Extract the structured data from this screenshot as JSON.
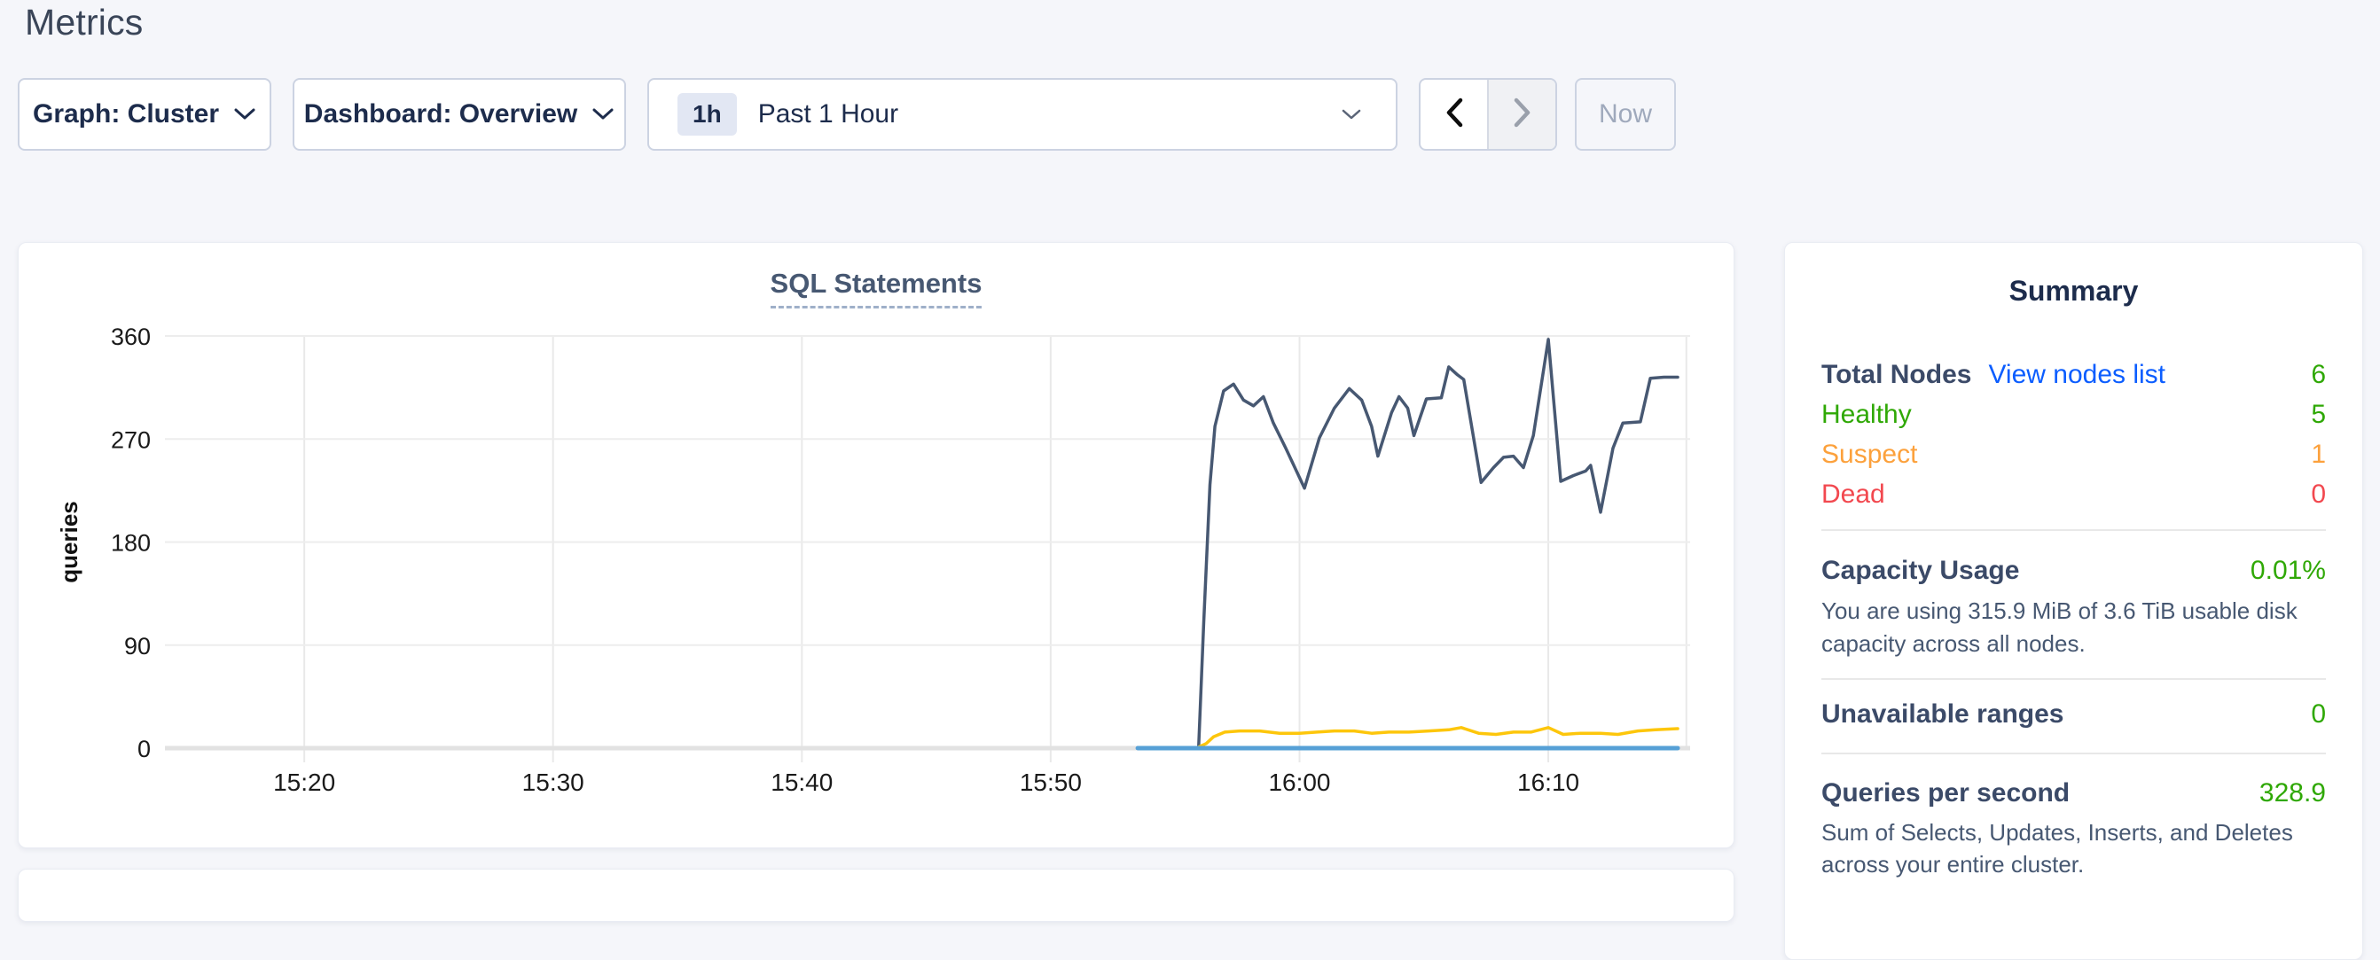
{
  "page": {
    "title": "Metrics",
    "background": "#f5f6fa"
  },
  "toolbar": {
    "graph": {
      "label": "Graph: Cluster"
    },
    "dashboard": {
      "label": "Dashboard: Overview"
    },
    "time": {
      "badge": "1h",
      "label": "Past 1 Hour"
    },
    "now": {
      "label": "Now"
    }
  },
  "chart_data": {
    "type": "line",
    "title": "SQL Statements",
    "ylabel": "queries",
    "ylim": [
      0,
      360
    ],
    "yticks": [
      0,
      90,
      180,
      270,
      360
    ],
    "x_unit": "minutes after 15:00",
    "xlim_minutes": [
      14.4,
      75.7
    ],
    "xticks": [
      {
        "minute": 20,
        "label": "15:20"
      },
      {
        "minute": 30,
        "label": "15:30"
      },
      {
        "minute": 40,
        "label": "15:40"
      },
      {
        "minute": 50,
        "label": "15:50"
      },
      {
        "minute": 60,
        "label": "16:00"
      },
      {
        "minute": 70,
        "label": "16:10"
      }
    ],
    "edge_gridline_minute": 75.55,
    "grid": true,
    "legend": "none",
    "series": [
      {
        "name": "navy-series",
        "color": "#475872",
        "stroke_width": 3.5,
        "points": [
          [
            55.95,
            2
          ],
          [
            56.15,
            110
          ],
          [
            56.4,
            230
          ],
          [
            56.6,
            281
          ],
          [
            56.95,
            312
          ],
          [
            57.35,
            318
          ],
          [
            57.75,
            304
          ],
          [
            58.15,
            299
          ],
          [
            58.55,
            307
          ],
          [
            58.95,
            284
          ],
          [
            59.45,
            262
          ],
          [
            60.2,
            227
          ],
          [
            60.8,
            271
          ],
          [
            61.4,
            297
          ],
          [
            62.0,
            314
          ],
          [
            62.5,
            304
          ],
          [
            62.9,
            281
          ],
          [
            63.15,
            255
          ],
          [
            63.7,
            293
          ],
          [
            64.0,
            307
          ],
          [
            64.35,
            297
          ],
          [
            64.6,
            273
          ],
          [
            65.1,
            305
          ],
          [
            65.7,
            306
          ],
          [
            66.0,
            333
          ],
          [
            66.35,
            326
          ],
          [
            66.6,
            322
          ],
          [
            67.3,
            232
          ],
          [
            67.8,
            245
          ],
          [
            68.2,
            254
          ],
          [
            68.6,
            255
          ],
          [
            69.0,
            245
          ],
          [
            69.4,
            273
          ],
          [
            70.0,
            357
          ],
          [
            70.5,
            233
          ],
          [
            71.0,
            238
          ],
          [
            71.5,
            242
          ],
          [
            71.7,
            247
          ],
          [
            72.1,
            206
          ],
          [
            72.6,
            262
          ],
          [
            73.0,
            284
          ],
          [
            73.7,
            285
          ],
          [
            74.1,
            323
          ],
          [
            74.65,
            324
          ],
          [
            75.2,
            324
          ]
        ]
      },
      {
        "name": "yellow-series",
        "color": "#fdc60b",
        "stroke_width": 3.5,
        "points": [
          [
            55.95,
            1
          ],
          [
            56.25,
            4
          ],
          [
            56.55,
            10
          ],
          [
            57.0,
            14
          ],
          [
            57.6,
            15
          ],
          [
            58.4,
            15
          ],
          [
            59.2,
            13
          ],
          [
            60.0,
            13
          ],
          [
            60.7,
            14
          ],
          [
            61.4,
            15
          ],
          [
            62.2,
            15
          ],
          [
            62.9,
            13
          ],
          [
            63.6,
            14
          ],
          [
            64.4,
            14
          ],
          [
            65.2,
            15
          ],
          [
            66.0,
            16
          ],
          [
            66.5,
            18
          ],
          [
            67.2,
            13
          ],
          [
            67.9,
            12
          ],
          [
            68.6,
            14
          ],
          [
            69.3,
            14
          ],
          [
            70.0,
            18
          ],
          [
            70.6,
            12
          ],
          [
            71.3,
            13
          ],
          [
            72.1,
            13
          ],
          [
            72.8,
            12
          ],
          [
            73.6,
            15
          ],
          [
            74.3,
            16
          ],
          [
            75.2,
            17
          ]
        ]
      },
      {
        "name": "blue-series",
        "color": "#56a0d6",
        "stroke_width": 5,
        "points": [
          [
            53.5,
            0
          ],
          [
            75.2,
            0
          ]
        ]
      }
    ]
  },
  "summary": {
    "title": "Summary",
    "nodes": {
      "label": "Total Nodes",
      "link": "View nodes list",
      "link_color": "#0b5dff",
      "value": "6",
      "value_color": "#2fa805",
      "rows": [
        {
          "label": "Healthy",
          "value": "5",
          "color": "#2fa805"
        },
        {
          "label": "Suspect",
          "value": "1",
          "color": "#fca13c"
        },
        {
          "label": "Dead",
          "value": "0",
          "color": "#f2484f"
        }
      ]
    },
    "capacity": {
      "label": "Capacity Usage",
      "value": "0.01%",
      "value_color": "#2fa805",
      "description": "You are using 315.9 MiB of 3.6 TiB usable disk capacity across all nodes."
    },
    "unavailable": {
      "label": "Unavailable ranges",
      "value": "0",
      "value_color": "#2fa805"
    },
    "qps": {
      "label": "Queries per second",
      "value": "328.9",
      "value_color": "#2fa805",
      "description": "Sum of Selects, Updates, Inserts, and Deletes across your entire cluster."
    }
  }
}
